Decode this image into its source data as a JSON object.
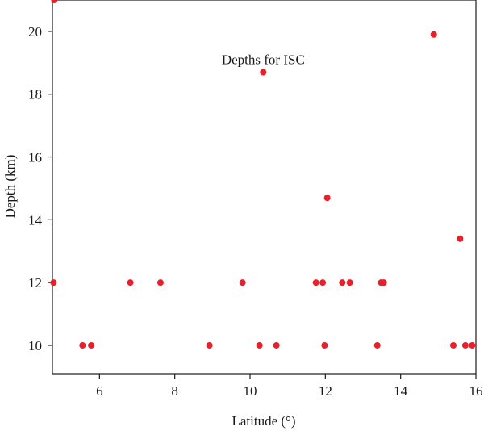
{
  "chart_data": {
    "type": "scatter",
    "title": "",
    "xlabel": "Latitude (°)",
    "ylabel": "Depth (km)",
    "xlim": [
      4.75,
      16.0
    ],
    "ylim": [
      9.1,
      21.0
    ],
    "xticks": [
      6,
      8,
      10,
      12,
      14,
      16
    ],
    "yticks": [
      10,
      12,
      14,
      16,
      18,
      20
    ],
    "grid": false,
    "marker_color": "#e8202a",
    "annotations": [
      {
        "text": "Depths for ISC",
        "x": 10.35,
        "y": 18.7
      }
    ],
    "series": [
      {
        "points": [
          [
            4.8,
            21.0
          ],
          [
            4.78,
            12.0
          ],
          [
            5.55,
            10.0
          ],
          [
            5.78,
            10.0
          ],
          [
            6.82,
            12.0
          ],
          [
            7.62,
            12.0
          ],
          [
            8.92,
            10.0
          ],
          [
            9.8,
            12.0
          ],
          [
            10.25,
            10.0
          ],
          [
            10.35,
            18.7
          ],
          [
            10.7,
            10.0
          ],
          [
            11.75,
            12.0
          ],
          [
            11.93,
            12.0
          ],
          [
            11.98,
            10.0
          ],
          [
            12.05,
            14.7
          ],
          [
            12.45,
            12.0
          ],
          [
            12.65,
            12.0
          ],
          [
            13.38,
            10.0
          ],
          [
            13.48,
            12.0
          ],
          [
            13.55,
            12.0
          ],
          [
            14.88,
            19.9
          ],
          [
            15.4,
            10.0
          ],
          [
            15.58,
            13.4
          ],
          [
            15.72,
            10.0
          ],
          [
            15.9,
            10.0
          ]
        ]
      }
    ]
  }
}
